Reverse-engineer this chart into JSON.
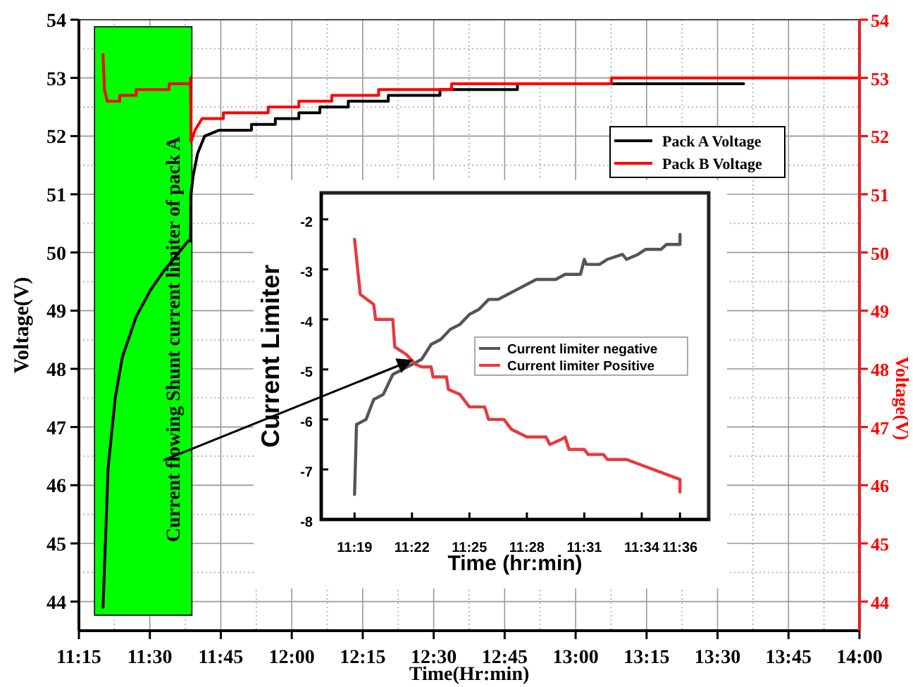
{
  "chart_data": [
    {
      "type": "line",
      "xlabel": "Time(Hr:min)",
      "ylabel": "Voltage(V)",
      "y2label": "Voltage(V)",
      "xlim": [
        11.25,
        14
      ],
      "xticks": [
        {
          "value": 11.25,
          "label": "11:15"
        },
        {
          "value": 11.5,
          "label": "11:30"
        },
        {
          "value": 11.75,
          "label": "11:45"
        },
        {
          "value": 12,
          "label": "12:00"
        },
        {
          "value": 12.25,
          "label": "12:15"
        },
        {
          "value": 12.5,
          "label": "12:30"
        },
        {
          "value": 12.75,
          "label": "12:45"
        },
        {
          "value": 13,
          "label": "13:00"
        },
        {
          "value": 13.25,
          "label": "13:15"
        },
        {
          "value": 13.5,
          "label": "13:30"
        },
        {
          "value": 13.75,
          "label": "13:45"
        },
        {
          "value": 14,
          "label": "14:00"
        }
      ],
      "ylim": [
        43.5,
        54
      ],
      "yticks": [
        44,
        45,
        46,
        47,
        48,
        49,
        50,
        51,
        52,
        53,
        54
      ],
      "y2lim": [
        43.5,
        54
      ],
      "y2ticks": [
        44,
        45,
        46,
        47,
        48,
        49,
        50,
        51,
        52,
        53,
        54
      ],
      "grid": true,
      "legend": "top right",
      "bands": [
        {
          "axis": "x",
          "from": 11.305,
          "to": 11.648,
          "label": "Current flowing Shunt current limiter of pack A",
          "color": "#00ff00"
        }
      ],
      "series": [
        {
          "name": "Pack A Voltage",
          "color": "#000000",
          "x": [
            11.335,
            11.353,
            11.378,
            11.403,
            11.452,
            11.502,
            11.552,
            11.602,
            11.635,
            11.643,
            11.645,
            11.652,
            11.668,
            11.693,
            11.743,
            11.858,
            11.858,
            11.942,
            11.942,
            12.025,
            12.025,
            12.099,
            12.099,
            12.199,
            12.199,
            12.34,
            12.34,
            12.522,
            12.522,
            12.795,
            12.795,
            13.592
          ],
          "values": [
            43.9,
            46.3,
            47.5,
            48.2,
            48.9,
            49.35,
            49.7,
            50.0,
            50.2,
            50.2,
            51.0,
            51.3,
            51.7,
            52.0,
            52.1,
            52.1,
            52.2,
            52.2,
            52.3,
            52.3,
            52.4,
            52.4,
            52.5,
            52.5,
            52.6,
            52.6,
            52.7,
            52.7,
            52.8,
            52.8,
            52.9,
            52.9
          ]
        },
        {
          "name": "Pack B Voltage",
          "color": "#ff0000",
          "axis": "y2",
          "x": [
            11.335,
            11.34,
            11.35,
            11.394,
            11.394,
            11.452,
            11.452,
            11.568,
            11.568,
            11.643,
            11.643,
            11.645,
            11.659,
            11.684,
            11.759,
            11.759,
            11.917,
            11.917,
            12.025,
            12.025,
            12.141,
            12.141,
            12.306,
            12.306,
            12.563,
            12.563,
            13.126,
            13.126,
            14.0
          ],
          "values": [
            53.4,
            52.8,
            52.6,
            52.6,
            52.7,
            52.7,
            52.8,
            52.8,
            52.9,
            52.9,
            53.0,
            51.9,
            52.1,
            52.3,
            52.3,
            52.4,
            52.4,
            52.5,
            52.5,
            52.6,
            52.6,
            52.7,
            52.7,
            52.8,
            52.8,
            52.9,
            52.9,
            53.0,
            53.0
          ]
        }
      ]
    },
    {
      "type": "line",
      "xlabel": "Time (hr:min)",
      "ylabel": "Current Limiter",
      "xlim": [
        11.2877,
        11.625
      ],
      "xticks": [
        {
          "value": 11.3167,
          "label": "11:19"
        },
        {
          "value": 11.3667,
          "label": "11:22"
        },
        {
          "value": 11.4167,
          "label": "11:25"
        },
        {
          "value": 11.4667,
          "label": "11:28"
        },
        {
          "value": 11.5167,
          "label": "11:31"
        },
        {
          "value": 11.5667,
          "label": "11:34"
        },
        {
          "value": 11.6,
          "label": "11:36"
        }
      ],
      "ylim": [
        -8,
        -1.47
      ],
      "yticks": [
        -8,
        -7,
        -6,
        -5,
        -4,
        -3,
        -2
      ],
      "legend": "right",
      "series": [
        {
          "name": "Current limiter negative",
          "color": "#555555",
          "x": [
            11.3167,
            11.3184,
            11.3267,
            11.3334,
            11.3417,
            11.35,
            11.3584,
            11.3667,
            11.375,
            11.3834,
            11.3917,
            11.4,
            11.4084,
            11.4167,
            11.425,
            11.4334,
            11.4417,
            11.45,
            11.4584,
            11.4667,
            11.475,
            11.4917,
            11.5,
            11.5134,
            11.5167,
            11.5184,
            11.53,
            11.5367,
            11.55,
            11.5534,
            11.5634,
            11.57,
            11.5834,
            11.5884,
            11.6,
            11.6
          ],
          "values": [
            -7.5,
            -6.1,
            -6.0,
            -5.6,
            -5.5,
            -5.1,
            -5.0,
            -4.9,
            -4.8,
            -4.5,
            -4.4,
            -4.2,
            -4.1,
            -3.9,
            -3.8,
            -3.6,
            -3.6,
            -3.5,
            -3.4,
            -3.3,
            -3.2,
            -3.2,
            -3.1,
            -3.1,
            -2.8,
            -2.9,
            -2.9,
            -2.8,
            -2.7,
            -2.8,
            -2.7,
            -2.6,
            -2.6,
            -2.5,
            -2.5,
            -2.3
          ]
        },
        {
          "name": "Current limiter Positive",
          "color": "#e8393f",
          "x": [
            11.3167,
            11.3217,
            11.3334,
            11.335,
            11.35,
            11.3517,
            11.3617,
            11.37,
            11.375,
            11.3834,
            11.385,
            11.3967,
            11.3984,
            11.4084,
            11.4167,
            11.43,
            11.4334,
            11.4467,
            11.4534,
            11.4667,
            11.4834,
            11.4867,
            11.4967,
            11.5,
            11.5034,
            11.5167,
            11.52,
            11.5334,
            11.5367,
            11.5534,
            11.6,
            11.6
          ],
          "values": [
            -2.4,
            -3.5,
            -3.7,
            -4.0,
            -4.0,
            -4.55,
            -4.7,
            -4.9,
            -4.95,
            -4.95,
            -5.15,
            -5.15,
            -5.4,
            -5.5,
            -5.75,
            -5.75,
            -6.0,
            -6.0,
            -6.2,
            -6.35,
            -6.35,
            -6.5,
            -6.4,
            -6.35,
            -6.6,
            -6.6,
            -6.7,
            -6.7,
            -6.8,
            -6.8,
            -7.2,
            -7.45
          ]
        }
      ]
    }
  ]
}
